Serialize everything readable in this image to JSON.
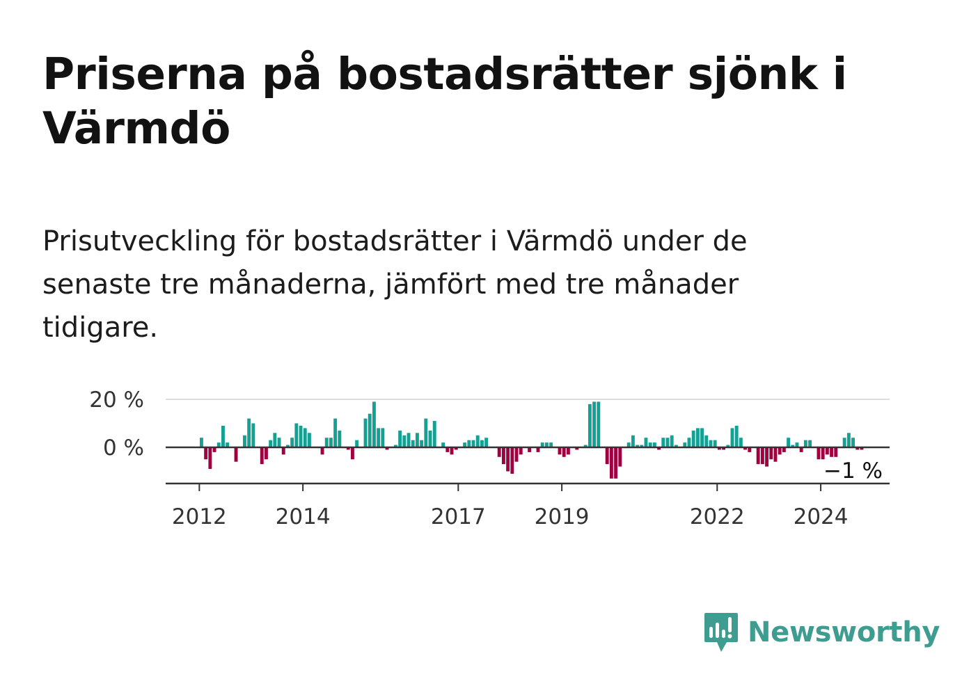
{
  "title": "Priserna på bostadsrätter sjönk i Värmdö",
  "subtitle": "Prisutveckling för bostadsrätter i Värmdö under de senaste tre månaderna, jämfört med tre månader tidigare.",
  "brand": {
    "name": "Newsworthy",
    "color": "#3f9c91"
  },
  "colors": {
    "positive": "#14a193",
    "negative": "#a0003f",
    "grid": "#dddddd",
    "axis": "#333333"
  },
  "chart_data": {
    "type": "bar",
    "title": "",
    "xlabel": "",
    "ylabel": "",
    "ylim": [
      -15,
      22
    ],
    "y_ticks": [
      {
        "value": 20,
        "label": "20 %"
      },
      {
        "value": 0,
        "label": "0 %"
      }
    ],
    "x_range": [
      2011.35,
      2025.33
    ],
    "x_ticks": [
      {
        "value": 2012,
        "label": "2012"
      },
      {
        "value": 2014,
        "label": "2014"
      },
      {
        "value": 2017,
        "label": "2017"
      },
      {
        "value": 2019,
        "label": "2019"
      },
      {
        "value": 2022,
        "label": "2022"
      },
      {
        "value": 2024,
        "label": "2024"
      }
    ],
    "start": {
      "year": 2012,
      "month": 1
    },
    "values": [
      4,
      -5,
      -9,
      -2,
      2,
      9,
      2,
      0,
      -6,
      0,
      5,
      12,
      10,
      0,
      -7,
      -5,
      3,
      6,
      4,
      -3,
      1,
      4,
      10,
      9,
      8,
      6,
      0,
      0,
      -3,
      4,
      4,
      12,
      7,
      0,
      -1,
      -5,
      3,
      0,
      12,
      14,
      19,
      8,
      8,
      -1,
      0,
      1,
      7,
      5,
      6,
      3,
      6,
      3,
      12,
      7,
      11,
      0,
      2,
      -2,
      -3,
      -1,
      0,
      2,
      3,
      3,
      5,
      3,
      4,
      0,
      0,
      -4,
      -7,
      -10,
      -11,
      -6,
      -3,
      0,
      -2,
      0,
      -2,
      2,
      2,
      2,
      0,
      -3,
      -4,
      -3,
      0,
      -1,
      0,
      1,
      18,
      19,
      19,
      0,
      -7,
      -13,
      -13,
      -8,
      0,
      2,
      5,
      1,
      1,
      4,
      2,
      2,
      -1,
      4,
      4,
      5,
      1,
      0,
      2,
      4,
      7,
      8,
      8,
      5,
      3,
      3,
      -1,
      -1,
      1,
      8,
      9,
      4,
      -1,
      -2,
      0,
      -7,
      -7,
      -8,
      -5,
      -6,
      -3,
      -2,
      4,
      1,
      2,
      -2,
      3,
      3,
      0,
      -5,
      -5,
      -3,
      -4,
      -4,
      0,
      4,
      6,
      4,
      -1,
      -1
    ],
    "last_value_label": "−1 %"
  }
}
